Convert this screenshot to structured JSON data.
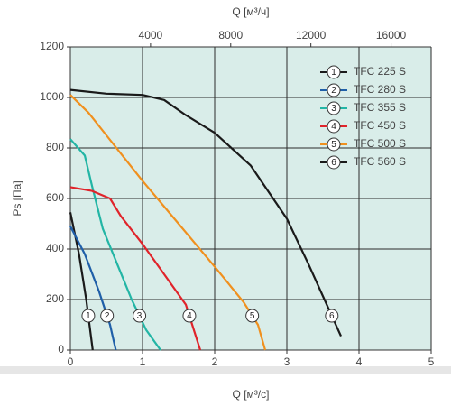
{
  "chart_data": {
    "type": "line",
    "xlabel": "Q [м³/с]",
    "ylabel": "Ps [Па]",
    "x2label": "Q [м³/ч]",
    "xlim": [
      0,
      5
    ],
    "xticks": [
      0,
      1,
      2,
      3,
      4,
      5
    ],
    "x2lim": [
      0,
      18000
    ],
    "x2ticks": [
      4000,
      8000,
      12000,
      16000
    ],
    "ylim": [
      0,
      1200
    ],
    "yticks": [
      0,
      200,
      400,
      600,
      800,
      1000,
      1200
    ],
    "grid": true,
    "legend": "upper right",
    "series": [
      {
        "name": "TFC 225 S",
        "marker": "1",
        "color": "#1a1a1a",
        "x": [
          0,
          0.12,
          0.22,
          0.31
        ],
        "values": [
          545,
          380,
          200,
          0
        ]
      },
      {
        "name": "TFC 280 S",
        "marker": "2",
        "color": "#1f5fa8",
        "x": [
          0,
          0.2,
          0.4,
          0.55,
          0.63
        ],
        "values": [
          490,
          380,
          230,
          100,
          0
        ]
      },
      {
        "name": "TFC 355 S",
        "marker": "3",
        "color": "#23b5a5",
        "x": [
          0,
          0.2,
          0.3,
          0.45,
          0.65,
          0.85,
          1.05,
          1.25
        ],
        "values": [
          835,
          770,
          650,
          480,
          340,
          200,
          80,
          0
        ]
      },
      {
        "name": "TFC 450 S",
        "marker": "4",
        "color": "#e0242b",
        "x": [
          0,
          0.3,
          0.55,
          0.7,
          1.0,
          1.3,
          1.6,
          1.8
        ],
        "values": [
          645,
          630,
          600,
          530,
          420,
          300,
          180,
          0
        ]
      },
      {
        "name": "TFC 500 S",
        "marker": "5",
        "color": "#f0901e",
        "x": [
          0,
          0.25,
          0.5,
          1.0,
          1.5,
          2.0,
          2.4,
          2.6,
          2.7
        ],
        "values": [
          1010,
          940,
          850,
          670,
          500,
          330,
          190,
          100,
          0
        ]
      },
      {
        "name": "TFC 560 S",
        "marker": "6",
        "color": "#1a1a1a",
        "x": [
          0,
          0.5,
          1.0,
          1.3,
          1.6,
          2.0,
          2.5,
          3.0,
          3.3,
          3.6,
          3.75
        ],
        "values": [
          1030,
          1015,
          1010,
          990,
          930,
          860,
          730,
          520,
          340,
          150,
          55
        ]
      }
    ]
  }
}
